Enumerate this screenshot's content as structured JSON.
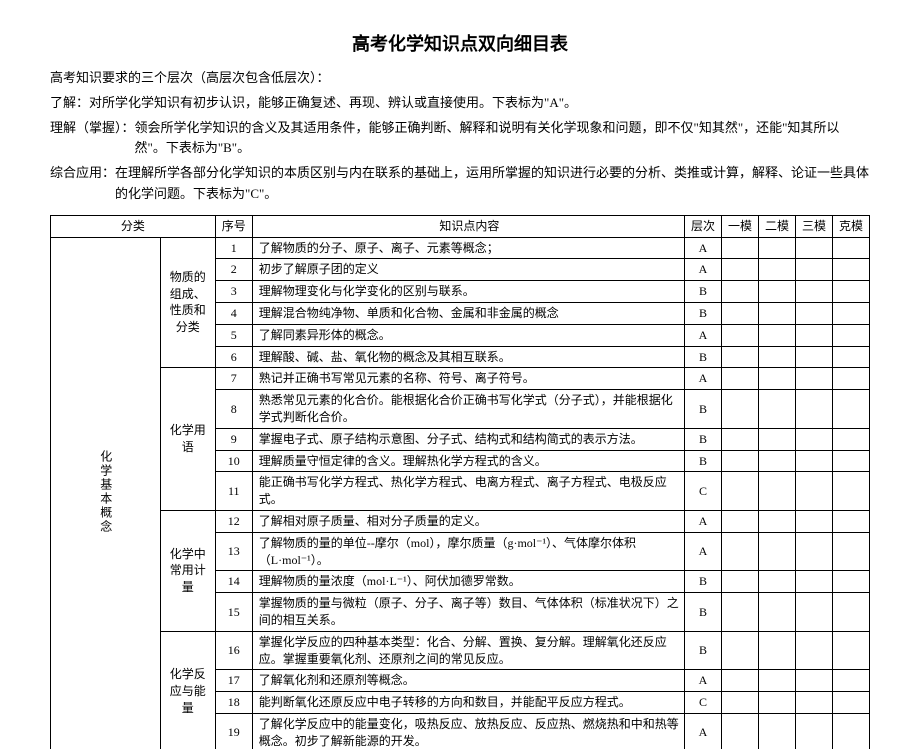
{
  "title": "高考化学知识点双向细目表",
  "intro_heading": "高考知识要求的三个层次（高层次包含低层次）：",
  "intro_items": [
    {
      "label": "了解：",
      "text": "对所学化学知识有初步认识，能够正确复述、再现、辨认或直接使用。下表标为\"A\"。"
    },
    {
      "label": "理解（掌握）：",
      "text": "领会所学化学知识的含义及其适用条件，能够正确判断、解释和说明有关化学现象和问题，即不仅\"知其然\"，还能\"知其所以然\"。下表标为\"B\"。"
    },
    {
      "label": "综合应用：",
      "text": "在理解所学各部分化学知识的本质区别与内在联系的基础上，运用所掌握的知识进行必要的分析、类推或计算，解释、论证一些具体的化学问题。下表标为\"C\"。"
    }
  ],
  "headers": {
    "category": "分类",
    "seq": "序号",
    "content": "知识点内容",
    "level": "层次",
    "mod1": "一模",
    "mod2": "二模",
    "mod3": "三模",
    "modk": "克模"
  },
  "major_category": "化学基本概念",
  "subcats": [
    {
      "name": "物质的组成、性质和分类",
      "rowspan": 6
    },
    {
      "name": "化学用语",
      "rowspan": 5
    },
    {
      "name": "化学中常用计量",
      "rowspan": 4
    },
    {
      "name": "化学反应与能量",
      "rowspan": 4
    }
  ],
  "rows": [
    {
      "seq": "1",
      "content": "了解物质的分子、原子、离子、元素等概念；",
      "level": "A"
    },
    {
      "seq": "2",
      "content": "初步了解原子团的定义",
      "level": "A"
    },
    {
      "seq": "3",
      "content": "理解物理变化与化学变化的区别与联系。",
      "level": "B"
    },
    {
      "seq": "4",
      "content": "理解混合物纯净物、单质和化合物、金属和非金属的概念",
      "level": "B"
    },
    {
      "seq": "5",
      "content": "了解同素异形体的概念。",
      "level": "A"
    },
    {
      "seq": "6",
      "content": "理解酸、碱、盐、氧化物的概念及其相互联系。",
      "level": "B"
    },
    {
      "seq": "7",
      "content": "熟记并正确书写常见元素的名称、符号、离子符号。",
      "level": "A"
    },
    {
      "seq": "8",
      "content": "熟悉常见元素的化合价。能根据化合价正确书写化学式（分子式），并能根据化学式判断化合价。",
      "level": "B"
    },
    {
      "seq": "9",
      "content": "掌握电子式、原子结构示意图、分子式、结构式和结构简式的表示方法。",
      "level": "B"
    },
    {
      "seq": "10",
      "content": "理解质量守恒定律的含义。理解热化学方程式的含义。",
      "level": "B"
    },
    {
      "seq": "11",
      "content": "能正确书写化学方程式、热化学方程式、电离方程式、离子方程式、电极反应式。",
      "level": "C"
    },
    {
      "seq": "12",
      "content": "了解相对原子质量、相对分子质量的定义。",
      "level": "A"
    },
    {
      "seq": "13",
      "content": "了解物质的量的单位--摩尔（mol），摩尔质量（g·mol⁻¹）、气体摩尔体积（L·mol⁻¹）。",
      "level": "A"
    },
    {
      "seq": "14",
      "content": "理解物质的量浓度（mol·L⁻¹）、阿伏加德罗常数。",
      "level": "B"
    },
    {
      "seq": "15",
      "content": "掌握物质的量与微粒（原子、分子、离子等）数目、气体体积（标准状况下）之间的相互关系。",
      "level": "B"
    },
    {
      "seq": "16",
      "content": "掌握化学反应的四种基本类型：化合、分解、置换、复分解。理解氧化还反应应。掌握重要氧化剂、还原剂之间的常见反应。",
      "level": "B"
    },
    {
      "seq": "17",
      "content": "了解氧化剂和还原剂等概念。",
      "level": "A"
    },
    {
      "seq": "18",
      "content": "能判断氧化还原反应中电子转移的方向和数目，并能配平反应方程式。",
      "level": "C"
    },
    {
      "seq": "19",
      "content": "了解化学反应中的能量变化，吸热反应、放热反应、反应热、燃烧热和中和热等概念。初步了解新能源的开发。",
      "level": "A"
    }
  ]
}
